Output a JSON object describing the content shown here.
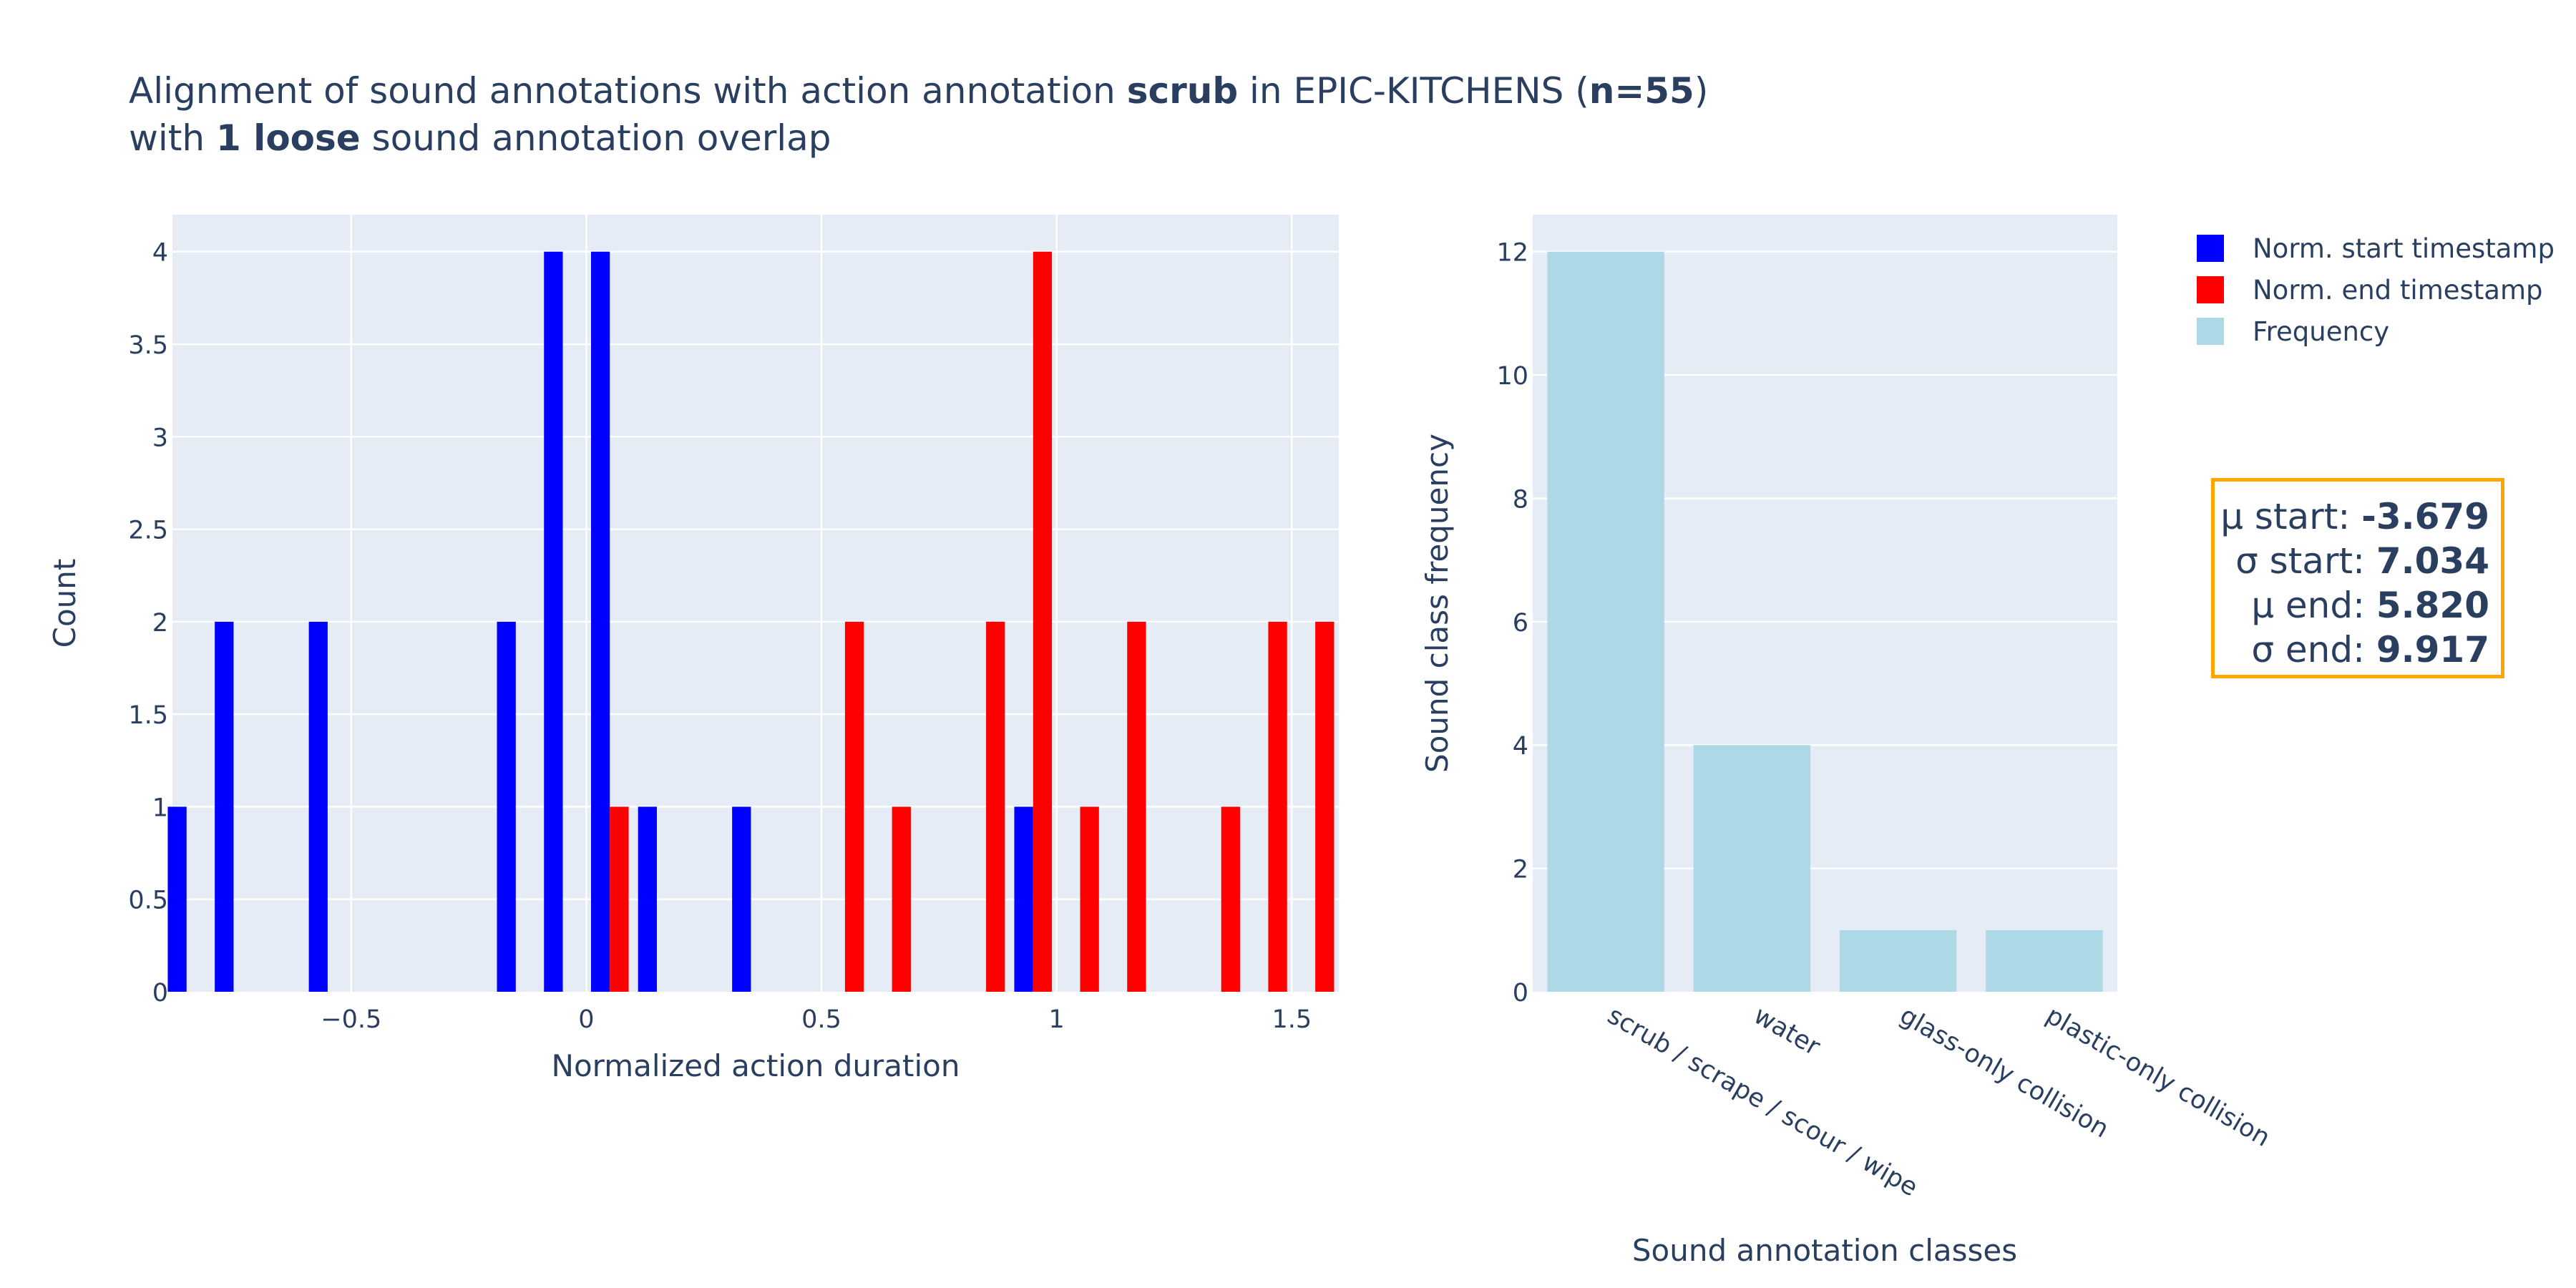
{
  "title": {
    "line1_pre": "Alignment of sound annotations with action annotation ",
    "line1_action": "scrub",
    "line1_mid": " in EPIC-KITCHENS (",
    "line1_n": "n=55",
    "line1_post": ")",
    "line2_pre": "with ",
    "line2_overlap": "1 loose",
    "line2_post": " sound annotation overlap"
  },
  "legend": {
    "start_label": "Norm. start timestamp",
    "end_label": "Norm. end timestamp",
    "freq_label": "Frequency"
  },
  "stats": {
    "mu_start_label": "μ start: ",
    "mu_start_value": "-3.679",
    "sigma_start_label": "σ start: ",
    "sigma_start_value": "7.034",
    "mu_end_label": "μ end: ",
    "mu_end_value": "5.820",
    "sigma_end_label": "σ end: ",
    "sigma_end_value": "9.917"
  },
  "colors": {
    "start": "#0000FF",
    "end": "#FF0000",
    "frequency": "#ADD8E6",
    "plot_bg": "#E5ECF6",
    "stats_border": "#FFA500",
    "text": "#2a3f5f"
  },
  "chart_data": [
    {
      "type": "bar",
      "subtype": "histogram",
      "xlabel": "Normalized action duration",
      "ylabel": "Count",
      "xlim": [
        -0.88,
        1.6
      ],
      "ylim": [
        0,
        4.2
      ],
      "bin_width": 0.1,
      "xticks": [
        "−0.5",
        "0",
        "0.5",
        "1",
        "1.5"
      ],
      "xtick_values": [
        -0.5,
        0,
        0.5,
        1,
        1.5
      ],
      "yticks": [
        "0",
        "0.5",
        "1",
        "1.5",
        "2",
        "2.5",
        "3",
        "3.5",
        "4"
      ],
      "ytick_values": [
        0,
        0.5,
        1,
        1.5,
        2,
        2.5,
        3,
        3.5,
        4
      ],
      "grid": true,
      "series": [
        {
          "name": "Norm. start timestamp",
          "bin_starts": [
            -0.9,
            -0.8,
            -0.6,
            -0.2,
            -0.1,
            0.0,
            0.1,
            0.3,
            0.9
          ],
          "counts": [
            1,
            2,
            2,
            2,
            4,
            4,
            1,
            1,
            1
          ]
        },
        {
          "name": "Norm. end timestamp",
          "bin_starts": [
            0.0,
            0.5,
            0.6,
            0.8,
            0.9,
            1.0,
            1.1,
            1.3,
            1.4,
            1.5
          ],
          "counts": [
            1,
            2,
            1,
            2,
            4,
            1,
            2,
            1,
            2,
            2
          ]
        }
      ]
    },
    {
      "type": "bar",
      "xlabel": "Sound annotation classes",
      "ylabel": "Sound class frequency",
      "ylim": [
        0,
        12.6
      ],
      "yticks": [
        "0",
        "2",
        "4",
        "6",
        "8",
        "10",
        "12"
      ],
      "ytick_values": [
        0,
        2,
        4,
        6,
        8,
        10,
        12
      ],
      "grid": true,
      "categories": [
        "scrub / scrape / scour / wipe",
        "water",
        "glass-only collision",
        "plastic-only collision"
      ],
      "series": [
        {
          "name": "Frequency",
          "values": [
            12,
            4,
            1,
            1
          ]
        }
      ]
    }
  ]
}
